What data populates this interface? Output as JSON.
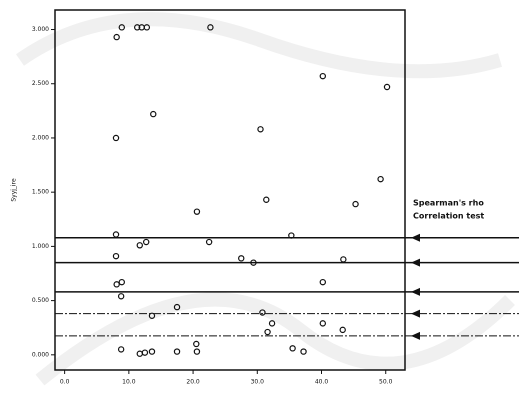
{
  "chart_data": {
    "type": "scatter",
    "y_label": "Syyj_ire",
    "annotation": [
      "Spearman's rho",
      "Correlation test"
    ],
    "xlim": [
      -1.5,
      53
    ],
    "ylim": [
      -0.14,
      3.18
    ],
    "xticks": [
      {
        "value": 0,
        "label": "0.0"
      },
      {
        "value": 10,
        "label": "10.0"
      },
      {
        "value": 20,
        "label": "20.0"
      },
      {
        "value": 30,
        "label": "30.0"
      },
      {
        "value": 40,
        "label": "40.0"
      },
      {
        "value": 50,
        "label": "50.0"
      }
    ],
    "yticks": [
      {
        "value": 0,
        "label": "0.000"
      },
      {
        "value": 0.5,
        "label": "0.500"
      },
      {
        "value": 1,
        "label": "1.000"
      },
      {
        "value": 1.5,
        "label": "1.500"
      },
      {
        "value": 2,
        "label": "2.000"
      },
      {
        "value": 2.5,
        "label": "2.500"
      },
      {
        "value": 3,
        "label": "3.000"
      }
    ],
    "series": [
      {
        "color": "#111111",
        "x": [
          8.1,
          8.9,
          11.3,
          12.0,
          12.8,
          22.7,
          8.0,
          13.8,
          30.5,
          40.2,
          50.2,
          20.6,
          31.4,
          45.3,
          49.2,
          8.0,
          8.0,
          8.1,
          8.9,
          8.8,
          11.7,
          12.7,
          22.5,
          27.5,
          29.4,
          35.3,
          43.4,
          40.2,
          17.5,
          13.6,
          30.8,
          32.3,
          31.6,
          40.2,
          43.3,
          8.8,
          11.7,
          12.5,
          13.6,
          17.5,
          20.5,
          20.6,
          35.5,
          37.2
        ],
        "values": [
          2.93,
          3.02,
          3.02,
          3.02,
          3.02,
          3.02,
          2.0,
          2.22,
          2.08,
          2.57,
          2.47,
          1.32,
          1.43,
          1.39,
          1.62,
          1.11,
          0.91,
          0.65,
          0.67,
          0.54,
          1.01,
          1.04,
          1.04,
          0.89,
          0.85,
          1.1,
          0.88,
          0.67,
          0.44,
          0.36,
          0.39,
          0.29,
          0.21,
          0.29,
          0.23,
          0.05,
          0.01,
          0.02,
          0.03,
          0.03,
          0.1,
          0.03,
          0.06,
          0.03
        ]
      }
    ],
    "hlines": [
      {
        "value": 1.08,
        "style": "solid"
      },
      {
        "value": 0.85,
        "style": "solid"
      },
      {
        "value": 0.58,
        "style": "solid"
      },
      {
        "value": 0.38,
        "style": "dashdot"
      },
      {
        "value": 0.175,
        "style": "dashdot"
      }
    ]
  }
}
